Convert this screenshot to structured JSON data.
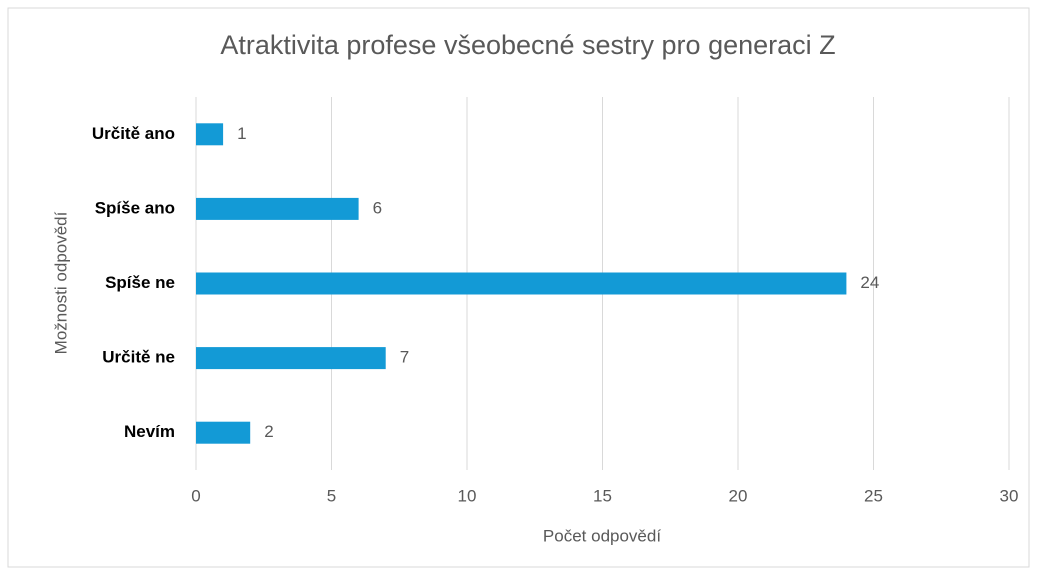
{
  "chart_data": {
    "type": "bar",
    "orientation": "horizontal",
    "title": "Atraktivita profese všeobecné sestry pro generaci Z",
    "xlabel": "Počet odpovědí",
    "ylabel": "Možnosti odpovědí",
    "categories": [
      "Určitě ano",
      "Spíše ano",
      "Spíše ne",
      "Určitě ne",
      "Nevím"
    ],
    "values": [
      1,
      6,
      24,
      7,
      2
    ],
    "color": "#139ad6",
    "xlim": [
      0,
      30
    ],
    "xticks": [
      0,
      5,
      10,
      15,
      20,
      25,
      30
    ],
    "grid": true
  }
}
